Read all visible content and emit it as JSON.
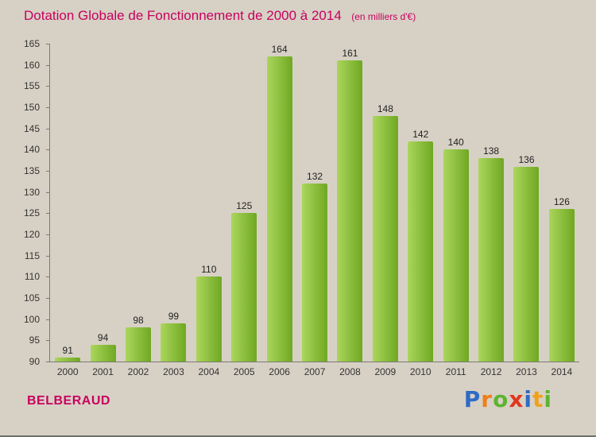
{
  "header": {
    "title": "Dotation Globale de Fonctionnement de 2000 à 2014",
    "subtitle": "(en milliers d'€)"
  },
  "footer": {
    "commune": "BELBERAUD",
    "logo_letters": [
      {
        "ch": "P",
        "color": "#2f6bc6"
      },
      {
        "ch": "r",
        "color": "#f07e1b"
      },
      {
        "ch": "o",
        "color": "#5eb430"
      },
      {
        "ch": "x",
        "color": "#e2371d"
      },
      {
        "ch": "i",
        "color": "#2f6bc6"
      },
      {
        "ch": "t",
        "color": "#f0a01b"
      },
      {
        "ch": "i",
        "color": "#5eb430"
      }
    ]
  },
  "colors": {
    "background": "#d7d1c5",
    "accent": "#c9005f",
    "bar_light": "#abd65c",
    "bar_dark": "#6fa822",
    "axis": "#7a7a72",
    "text": "#333333"
  },
  "chart_data": {
    "type": "bar",
    "title": "Dotation Globale de Fonctionnement de 2000 à 2014",
    "subtitle": "(en milliers d'€)",
    "categories": [
      "2000",
      "2001",
      "2002",
      "2003",
      "2004",
      "2005",
      "2006",
      "2007",
      "2008",
      "2009",
      "2010",
      "2011",
      "2012",
      "2013",
      "2014"
    ],
    "values": [
      91,
      94,
      98,
      99,
      110,
      125,
      164,
      132,
      161,
      148,
      142,
      140,
      138,
      136,
      126
    ],
    "xlabel": "",
    "ylabel": "",
    "ylim": [
      90,
      165
    ],
    "ytick_step": 5,
    "grid": false,
    "legend": false
  }
}
